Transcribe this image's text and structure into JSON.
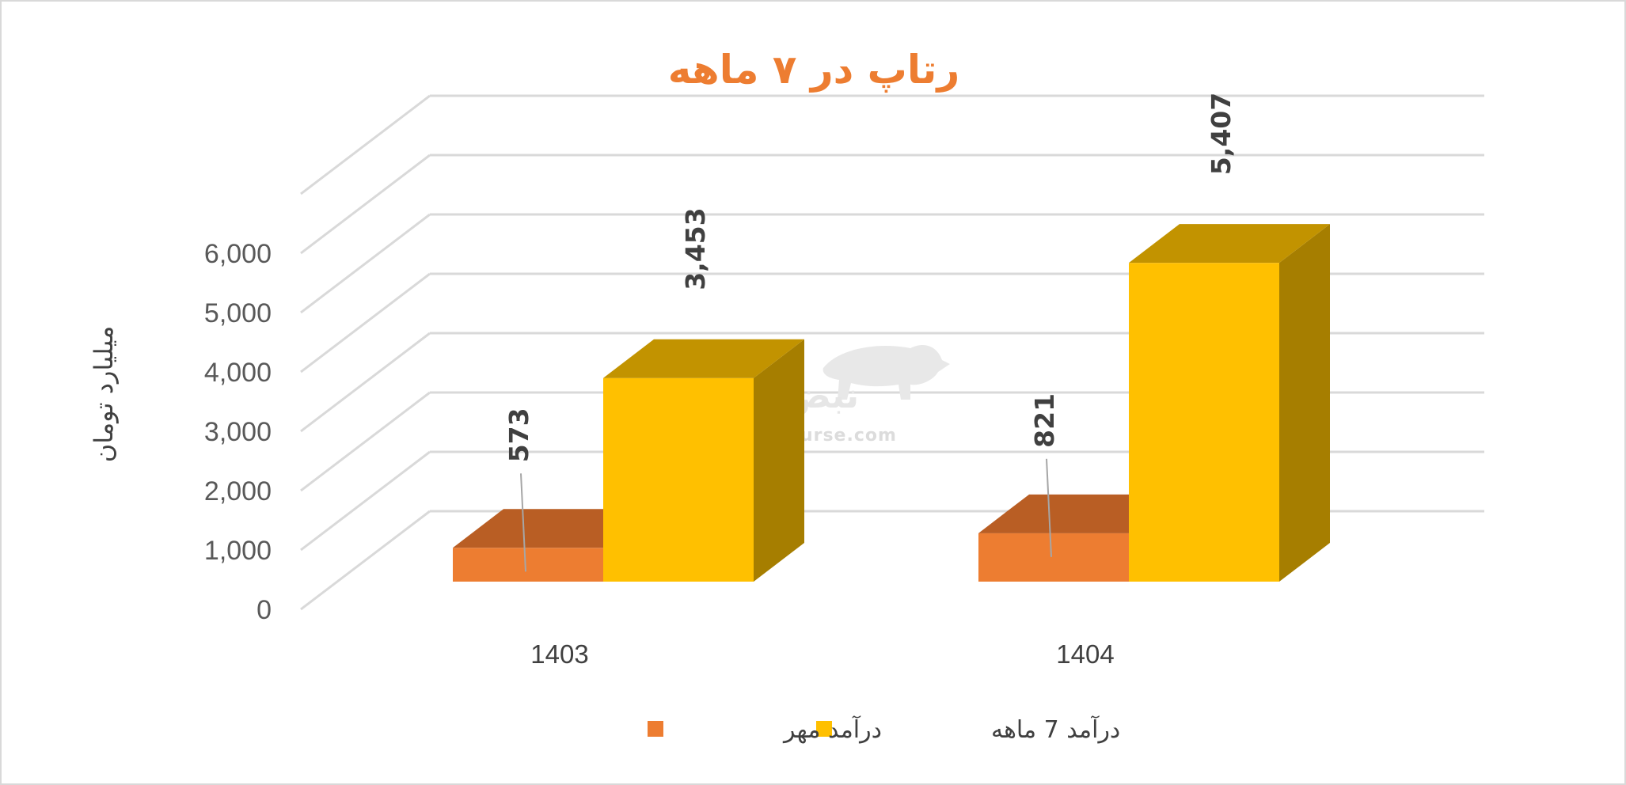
{
  "chart_data": {
    "type": "bar",
    "title": "رتاپ در ۷ ماهه",
    "ylabel": "میلیارد تومان",
    "xlabel": "",
    "categories": [
      "1403",
      "1404"
    ],
    "series": [
      {
        "name": "درآمد مهر",
        "values": [
          573,
          821
        ],
        "color": "#ED7D31",
        "top_color": "#B95E24",
        "value_labels": [
          "573",
          "821"
        ]
      },
      {
        "name": "درآمد 7  ماهه",
        "values": [
          3453,
          5407
        ],
        "color": "#FFC000",
        "top_color": "#C29300",
        "side_color": "#A67E00",
        "value_labels": [
          "3,453",
          "5,407"
        ]
      }
    ],
    "yticks": [
      "0",
      "1,000",
      "2,000",
      "3,000",
      "4,000",
      "5,000",
      "6,000"
    ],
    "ylim": [
      0,
      6000
    ],
    "grid": true,
    "legend_position": "bottom",
    "style": "3d-column"
  },
  "watermark": {
    "text": "نبض بورس",
    "url_text": "nabzebourse.com"
  }
}
